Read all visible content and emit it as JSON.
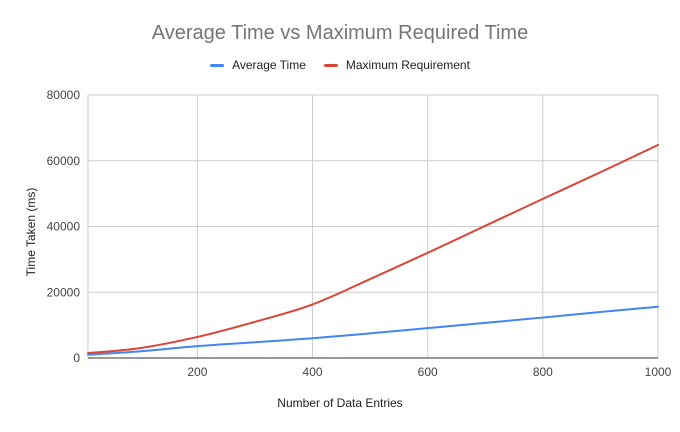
{
  "chart_data": {
    "type": "line",
    "title": "Average Time vs Maximum Required Time",
    "xlabel": "Number of Data Entries",
    "ylabel": "Time Taken (ms)",
    "xlim": [
      10,
      1000
    ],
    "ylim": [
      0,
      80000
    ],
    "x_ticks": [
      200,
      400,
      600,
      800,
      1000
    ],
    "y_ticks": [
      0,
      20000,
      40000,
      60000,
      80000
    ],
    "grid": true,
    "legend_position": "top",
    "series": [
      {
        "name": "Average Time",
        "color": "#4285f4",
        "points": [
          [
            10,
            1000
          ],
          [
            100,
            2000
          ],
          [
            200,
            3600
          ],
          [
            300,
            4800
          ],
          [
            400,
            6000
          ],
          [
            500,
            7500
          ],
          [
            600,
            9100
          ],
          [
            700,
            10700
          ],
          [
            800,
            12300
          ],
          [
            900,
            14000
          ],
          [
            1000,
            15600
          ]
        ]
      },
      {
        "name": "Maximum Requirement",
        "color": "#db4437",
        "points": [
          [
            10,
            1500
          ],
          [
            100,
            3000
          ],
          [
            200,
            6400
          ],
          [
            300,
            11000
          ],
          [
            400,
            16300
          ],
          [
            500,
            24000
          ],
          [
            600,
            32000
          ],
          [
            700,
            40200
          ],
          [
            800,
            48400
          ],
          [
            900,
            56500
          ],
          [
            1000,
            64800
          ]
        ]
      }
    ]
  }
}
